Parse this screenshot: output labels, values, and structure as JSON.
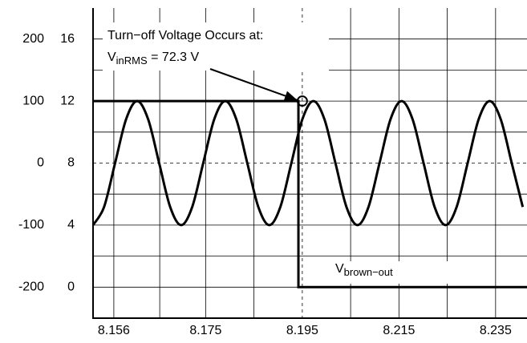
{
  "chart_data": {
    "type": "line",
    "xlim": [
      8.1517,
      8.2415
    ],
    "xticks": [
      8.156,
      8.175,
      8.195,
      8.215,
      8.235
    ],
    "xgrid": [
      8.156,
      8.1655,
      8.175,
      8.185,
      8.195,
      8.205,
      8.215,
      8.225,
      8.235
    ],
    "ylim": [
      -250,
      250
    ],
    "yticks": [
      -200,
      -100,
      0,
      100,
      200
    ],
    "ygrid": [
      -200,
      -150,
      -100,
      -50,
      0,
      50,
      100,
      150,
      200
    ],
    "y2lim": [
      -2,
      18
    ],
    "y2ticks": [
      0,
      4,
      8,
      12,
      16
    ],
    "grid": true,
    "series": [
      {
        "color": "#000000",
        "x": [
          8.1517,
          8.15398,
          8.15626,
          8.15854,
          8.16082,
          8.1631,
          8.16538,
          8.16766,
          8.16994,
          8.17222,
          8.1745,
          8.17678,
          8.17906,
          8.18134,
          8.18362,
          8.1859,
          8.18818,
          8.19046,
          8.19274,
          8.19502,
          8.1973,
          8.19958,
          8.20186,
          8.20414,
          8.20642,
          8.2087,
          8.21098,
          8.21326,
          8.21554,
          8.21782,
          8.2201,
          8.22238,
          8.22466,
          8.22694,
          8.22922,
          8.2315,
          8.23378,
          8.23606,
          8.23834,
          8.24062
        ],
        "values": [
          -100,
          -70.7,
          0,
          70.7,
          100,
          70.7,
          0,
          -70.7,
          -100,
          -70.7,
          0,
          70.7,
          100,
          70.7,
          0,
          -70.7,
          -100,
          -70.7,
          0,
          70.7,
          100,
          70.7,
          0,
          -70.7,
          -100,
          -70.7,
          0,
          70.7,
          100,
          70.7,
          0,
          -70.7,
          -100,
          -70.7,
          0,
          70.7,
          100,
          70.7,
          0,
          -70.7
        ]
      },
      {
        "name": "brown-out",
        "color": "#000000",
        "axis": "y2",
        "x": [
          8.1517,
          8.1942,
          8.1942,
          8.2415
        ],
        "values": [
          12,
          12,
          0,
          0
        ]
      }
    ],
    "marker": {
      "x": 8.195,
      "value": 100
    },
    "annotations": {
      "turnoff": "Turn−off Voltage Occurs at:",
      "vin_v": "V",
      "vin_sub": "inRMS",
      "vin_rest": " = 72.3 V",
      "vbo_v": "V",
      "vbo_sub": "brown−out"
    }
  }
}
